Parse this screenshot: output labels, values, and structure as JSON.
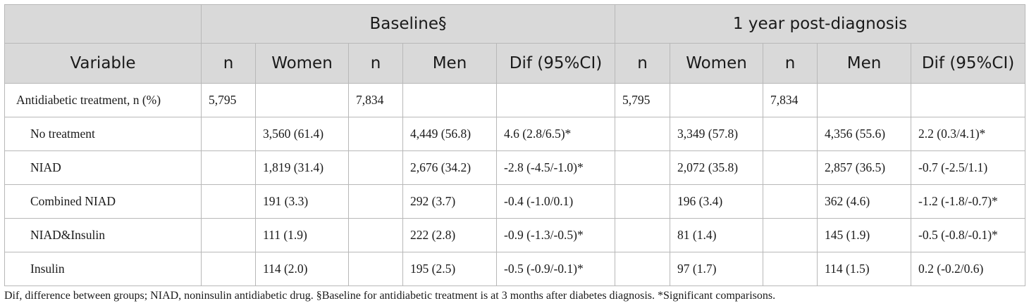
{
  "table": {
    "group_headers": {
      "baseline": "Baseline§",
      "one_year": "1 year post-diagnosis"
    },
    "columns": [
      "Variable",
      "n",
      "Women",
      "n",
      "Men",
      "Dif (95%CI)",
      "n",
      "Women",
      "n",
      "Men",
      "Dif (95%CI)"
    ],
    "rows": [
      [
        "Antidiabetic treatment, n (%)",
        "5,795",
        "",
        "7,834",
        "",
        "",
        "5,795",
        "",
        "7,834",
        "",
        ""
      ],
      [
        "No treatment",
        "",
        "3,560 (61.4)",
        "",
        "4,449 (56.8)",
        "4.6 (2.8/6.5)*",
        "",
        "3,349 (57.8)",
        "",
        "4,356 (55.6)",
        "2.2 (0.3/4.1)*"
      ],
      [
        "NIAD",
        "",
        "1,819 (31.4)",
        "",
        "2,676 (34.2)",
        "-2.8 (-4.5/-1.0)*",
        "",
        "2,072 (35.8)",
        "",
        "2,857 (36.5)",
        "-0.7 (-2.5/1.1)"
      ],
      [
        "Combined NIAD",
        "",
        "191 (3.3)",
        "",
        "292 (3.7)",
        "-0.4 (-1.0/0.1)",
        "",
        "196 (3.4)",
        "",
        "362 (4.6)",
        "-1.2 (-1.8/-0.7)*"
      ],
      [
        "NIAD&Insulin",
        "",
        "111 (1.9)",
        "",
        "222 (2.8)",
        "-0.9 (-1.3/-0.5)*",
        "",
        "81 (1.4)",
        "",
        "145 (1.9)",
        "-0.5 (-0.8/-0.1)*"
      ],
      [
        "Insulin",
        "",
        "114 (2.0)",
        "",
        "195 (2.5)",
        "-0.5 (-0.9/-0.1)*",
        "",
        "97 (1.7)",
        "",
        "114 (1.5)",
        "0.2 (-0.2/0.6)"
      ]
    ]
  },
  "footnote": "Dif, difference between groups; NIAD, noninsulin antidiabetic drug. §Baseline for antidiabetic treatment is at 3 months after diabetes diagnosis. *Significant comparisons."
}
